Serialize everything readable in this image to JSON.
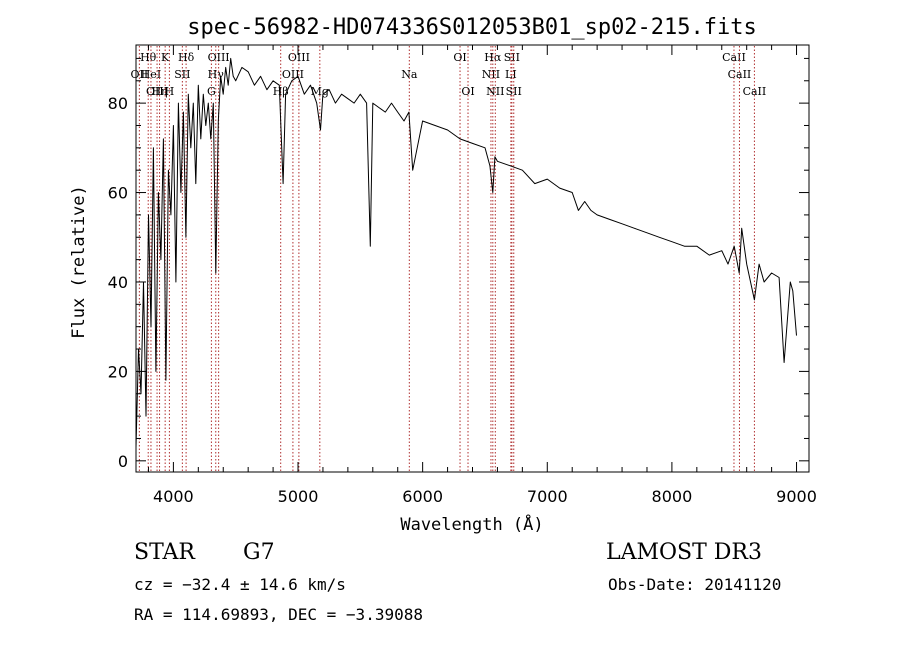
{
  "chart_data": {
    "type": "line",
    "title": "spec-56982-HD074336S012053B01_sp02-215.fits",
    "xlabel": "Wavelength (Å)",
    "ylabel": "Flux (relative)",
    "xlim": [
      3700,
      9100
    ],
    "ylim": [
      -2.5,
      93
    ],
    "xticks": [
      4000,
      5000,
      6000,
      7000,
      8000,
      9000
    ],
    "yticks": [
      0,
      20,
      40,
      60,
      80
    ],
    "grid": false,
    "series": [
      {
        "name": "flux",
        "x": [
          3700,
          3720,
          3740,
          3760,
          3780,
          3800,
          3820,
          3840,
          3860,
          3880,
          3900,
          3920,
          3940,
          3960,
          3980,
          4000,
          4020,
          4040,
          4060,
          4080,
          4100,
          4120,
          4140,
          4160,
          4180,
          4200,
          4220,
          4240,
          4260,
          4280,
          4300,
          4320,
          4340,
          4360,
          4380,
          4400,
          4420,
          4440,
          4460,
          4480,
          4500,
          4550,
          4600,
          4650,
          4700,
          4750,
          4800,
          4850,
          4880,
          4900,
          4950,
          5000,
          5050,
          5100,
          5150,
          5180,
          5200,
          5250,
          5300,
          5350,
          5400,
          5450,
          5500,
          5550,
          5580,
          5600,
          5650,
          5700,
          5750,
          5800,
          5850,
          5890,
          5920,
          6000,
          6100,
          6200,
          6300,
          6400,
          6500,
          6540,
          6563,
          6580,
          6600,
          6700,
          6800,
          6900,
          7000,
          7100,
          7200,
          7250,
          7300,
          7350,
          7400,
          7500,
          7600,
          7700,
          7800,
          7900,
          8000,
          8100,
          8200,
          8300,
          8400,
          8450,
          8500,
          8540,
          8560,
          8600,
          8662,
          8700,
          8740,
          8800,
          8860,
          8900,
          8950,
          8970,
          9000
        ],
        "y": [
          3,
          25,
          15,
          40,
          10,
          55,
          30,
          70,
          20,
          60,
          45,
          72,
          18,
          65,
          55,
          75,
          40,
          80,
          60,
          78,
          50,
          82,
          70,
          80,
          62,
          84,
          72,
          82,
          75,
          80,
          72,
          80,
          42,
          76,
          86,
          82,
          88,
          84,
          90,
          86,
          85,
          88,
          87,
          84,
          86,
          83,
          85,
          84,
          62,
          82,
          85,
          86,
          82,
          84,
          80,
          74,
          82,
          83,
          80,
          82,
          81,
          80,
          82,
          80,
          48,
          80,
          79,
          78,
          80,
          78,
          76,
          78,
          65,
          76,
          75,
          74,
          72,
          71,
          70,
          66,
          60,
          68,
          67,
          66,
          65,
          62,
          63,
          61,
          60,
          56,
          58,
          56,
          55,
          54,
          53,
          52,
          51,
          50,
          49,
          48,
          48,
          46,
          47,
          44,
          48,
          42,
          52,
          44,
          36,
          44,
          40,
          42,
          41,
          22,
          40,
          38,
          28
        ]
      }
    ],
    "lines": [
      {
        "name": "Hθ",
        "wave": 3798,
        "row": 1
      },
      {
        "name": "OII",
        "wave": 3727,
        "row": 2
      },
      {
        "name": "HeI",
        "wave": 3820,
        "row": 2
      },
      {
        "name": "OIII",
        "wave": 3869,
        "row": 3
      },
      {
        "name": "Hη",
        "wave": 3889,
        "row": 3
      },
      {
        "name": "K",
        "wave": 3934,
        "row": 1
      },
      {
        "name": "H",
        "wave": 3968,
        "row": 3
      },
      {
        "name": "SII",
        "wave": 4072,
        "row": 2
      },
      {
        "name": "Hδ",
        "wave": 4102,
        "row": 1
      },
      {
        "name": "Hγ",
        "wave": 4340,
        "row": 2
      },
      {
        "name": "OIII",
        "wave": 4363,
        "row": 1
      },
      {
        "name": "G",
        "wave": 4305,
        "row": 3
      },
      {
        "name": "Hβ",
        "wave": 4861,
        "row": 3
      },
      {
        "name": "OIII",
        "wave": 5007,
        "row": 1
      },
      {
        "name": "OIII",
        "wave": 4959,
        "row": 2
      },
      {
        "name": "Mg",
        "wave": 5175,
        "row": 3
      },
      {
        "name": "Na",
        "wave": 5893,
        "row": 2
      },
      {
        "name": "OI",
        "wave": 6300,
        "row": 1
      },
      {
        "name": "OI",
        "wave": 6364,
        "row": 3
      },
      {
        "name": "NII",
        "wave": 6548,
        "row": 2
      },
      {
        "name": "Hα",
        "wave": 6563,
        "row": 1
      },
      {
        "name": "NII",
        "wave": 6583,
        "row": 3
      },
      {
        "name": "SII",
        "wave": 6716,
        "row": 1
      },
      {
        "name": "LI",
        "wave": 6708,
        "row": 2
      },
      {
        "name": "SII",
        "wave": 6731,
        "row": 3
      },
      {
        "name": "CaII",
        "wave": 8498,
        "row": 1
      },
      {
        "name": "CaII",
        "wave": 8542,
        "row": 2
      },
      {
        "name": "CaII",
        "wave": 8662,
        "row": 3
      }
    ]
  },
  "info": {
    "object_type": "STAR",
    "subclass": "G7",
    "survey": "LAMOST DR3",
    "redshift": "cz = −32.4 ± 14.6 km/s",
    "obs_date": "Obs-Date: 20141120",
    "coords": "RA = 114.69893, DEC =  −3.39088"
  },
  "colors": {
    "spectrum": "#000000",
    "line_marker": "#b03030",
    "axes": "#000000"
  }
}
